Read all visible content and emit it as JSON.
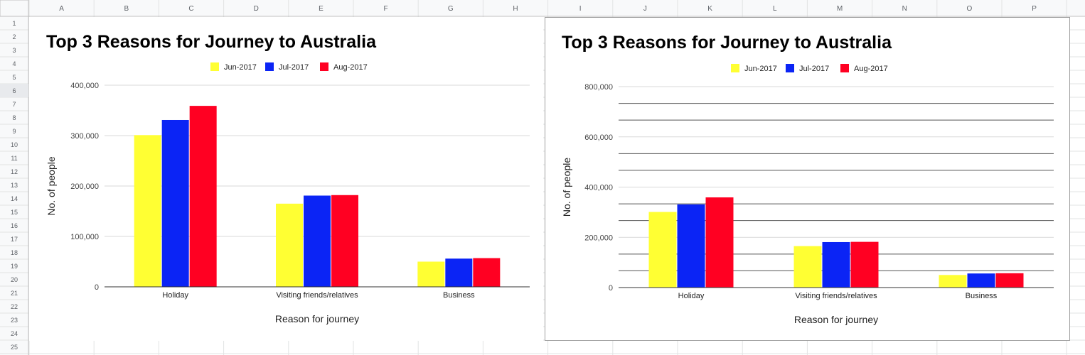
{
  "spreadsheet": {
    "column_headers": [
      "A",
      "B",
      "C",
      "D",
      "E",
      "F",
      "G",
      "H",
      "I",
      "J",
      "K",
      "L",
      "M",
      "N",
      "O",
      "P"
    ],
    "row_headers": [
      "1",
      "2",
      "3",
      "4",
      "5",
      "6",
      "7",
      "8",
      "9",
      "10",
      "11",
      "12",
      "13",
      "14",
      "15",
      "16",
      "17",
      "18",
      "19",
      "20",
      "21",
      "22",
      "23",
      "24",
      "25"
    ],
    "selected_row": "6"
  },
  "chart_data": [
    {
      "type": "bar",
      "title": "Top 3 Reasons for Journey to Australia",
      "xlabel": "Reason for journey",
      "ylabel": "No. of people",
      "categories": [
        "Holiday",
        "Visiting friends/relatives",
        "Business"
      ],
      "series": [
        {
          "name": "Jun-2017",
          "color": "#ffff33",
          "values": [
            301000,
            165000,
            50000
          ]
        },
        {
          "name": "Jul-2017",
          "color": "#0b24f5",
          "values": [
            331000,
            181000,
            56000
          ]
        },
        {
          "name": "Aug-2017",
          "color": "#ff0022",
          "values": [
            359000,
            182000,
            57000
          ]
        }
      ],
      "ylim": [
        0,
        400000
      ],
      "yticks": [
        0,
        100000,
        200000,
        300000,
        400000
      ],
      "ytick_labels": [
        "0",
        "100,000",
        "200,000",
        "300,000",
        "400,000"
      ],
      "minor_gridlines": false,
      "legend_position": "top"
    },
    {
      "type": "bar",
      "title": "Top 3 Reasons for Journey to Australia",
      "xlabel": "Reason for journey",
      "ylabel": "No. of people",
      "categories": [
        "Holiday",
        "Visiting friends/relatives",
        "Business"
      ],
      "series": [
        {
          "name": "Jun-2017",
          "color": "#ffff33",
          "values": [
            301000,
            165000,
            50000
          ]
        },
        {
          "name": "Jul-2017",
          "color": "#0b24f5",
          "values": [
            331000,
            181000,
            56000
          ]
        },
        {
          "name": "Aug-2017",
          "color": "#ff0022",
          "values": [
            359000,
            182000,
            57000
          ]
        }
      ],
      "ylim": [
        0,
        800000
      ],
      "yticks": [
        0,
        200000,
        400000,
        600000,
        800000
      ],
      "ytick_labels": [
        "0",
        "200,000",
        "400,000",
        "600,000",
        "800,000"
      ],
      "minor_gridlines": true,
      "legend_position": "top"
    }
  ]
}
